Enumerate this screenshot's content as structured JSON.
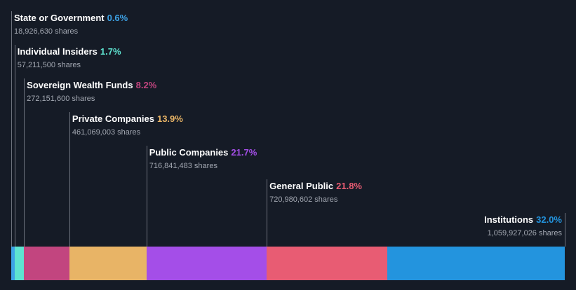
{
  "chart_data": {
    "type": "bar",
    "stacked": true,
    "orientation": "horizontal",
    "categories": [
      "State or Government",
      "Individual Insiders",
      "Sovereign Wealth Funds",
      "Private Companies",
      "Public Companies",
      "General Public",
      "Institutions"
    ],
    "values": [
      0.6,
      1.7,
      8.2,
      13.9,
      21.7,
      21.8,
      32.0
    ],
    "percent_labels": [
      "0.6%",
      "1.7%",
      "8.2%",
      "13.9%",
      "21.7%",
      "21.8%",
      "32.0%"
    ],
    "share_labels": [
      "18,926,630 shares",
      "57,211,500 shares",
      "272,151,600 shares",
      "461,069,003 shares",
      "716,841,483 shares",
      "720,980,602 shares",
      "1,059,927,026 shares"
    ],
    "colors": [
      "#3da2e6",
      "#5ee3d0",
      "#c2457f",
      "#e8b466",
      "#a44ee8",
      "#e85c73",
      "#2394de"
    ],
    "background": "#151b26"
  }
}
